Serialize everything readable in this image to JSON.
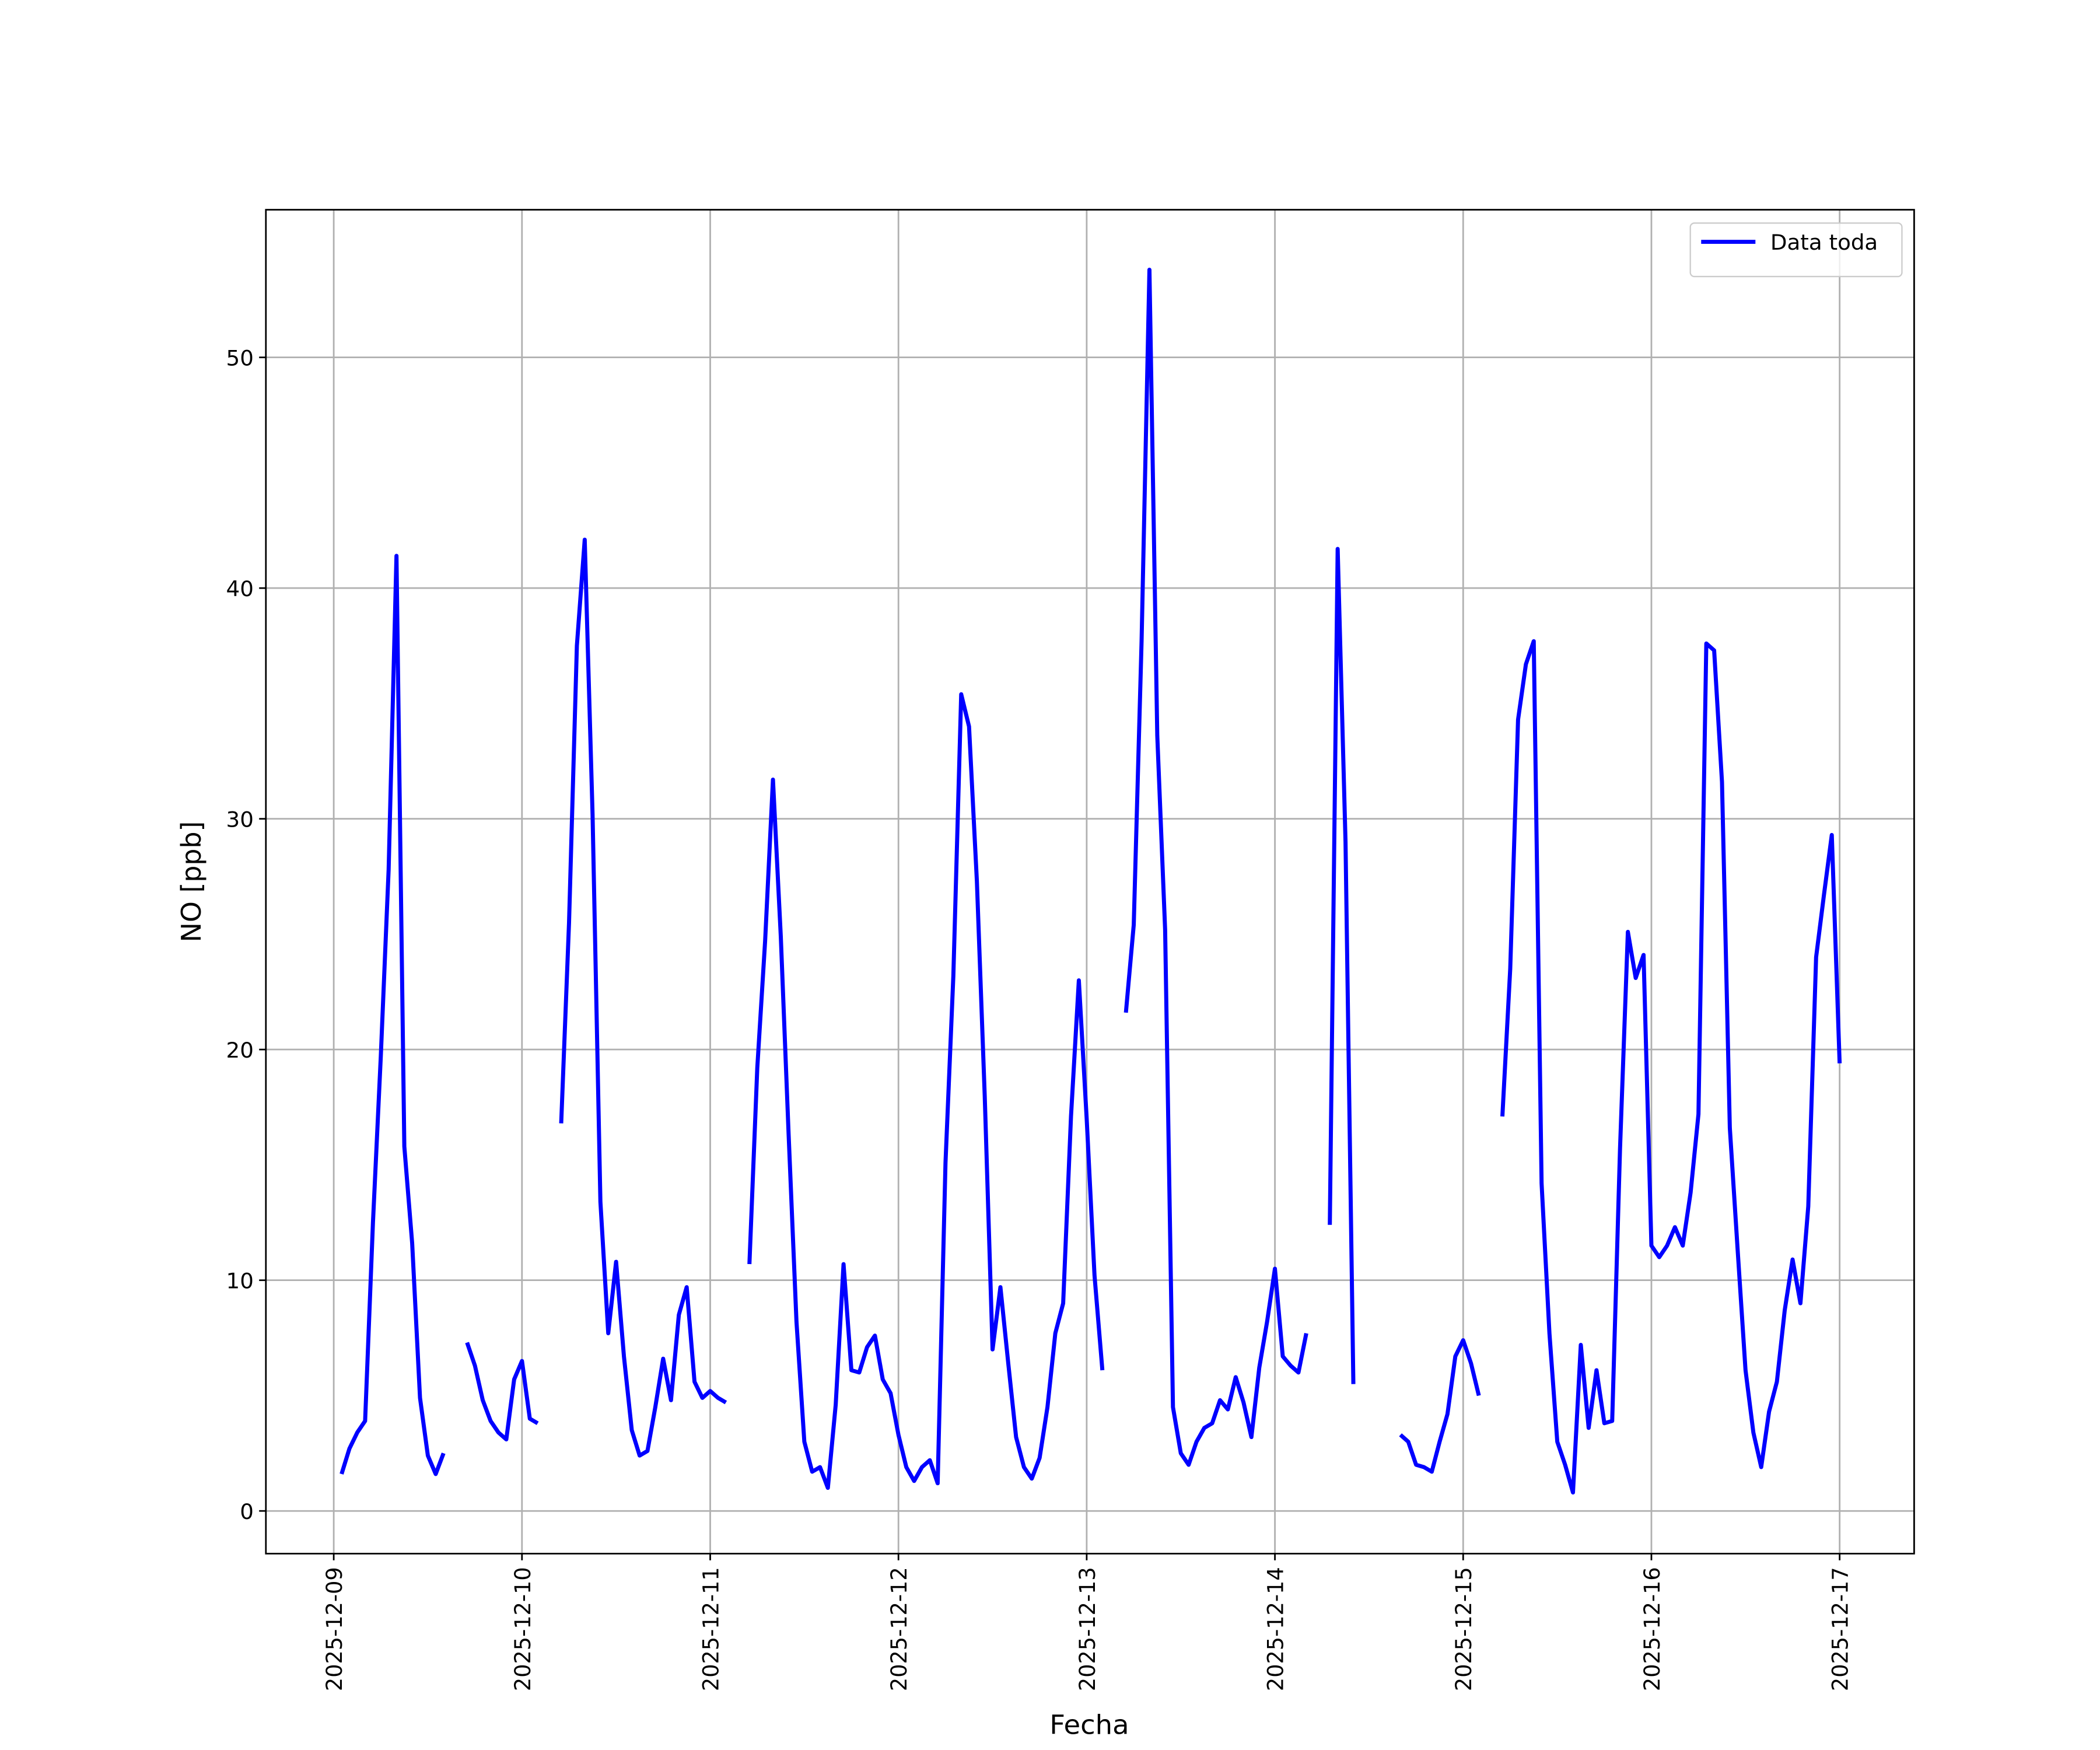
{
  "chart_data": {
    "type": "line",
    "xlabel": "Fecha",
    "ylabel": "NO [ppb]",
    "x": [
      "2025-12-09T01:00",
      "2025-12-09T02:00",
      "2025-12-09T03:00",
      "2025-12-09T04:00",
      "2025-12-09T05:00",
      "2025-12-09T06:00",
      "2025-12-09T07:00",
      "2025-12-09T08:00",
      "2025-12-09T09:00",
      "2025-12-09T10:00",
      "2025-12-09T11:00",
      "2025-12-09T12:00",
      "2025-12-09T13:00",
      "2025-12-09T14:00",
      "2025-12-09T15:00",
      "2025-12-09T16:00",
      "2025-12-09T17:00",
      "2025-12-09T18:00",
      "2025-12-09T19:00",
      "2025-12-09T20:00",
      "2025-12-09T21:00",
      "2025-12-09T22:00",
      "2025-12-09T23:00",
      "2025-12-10T00:00",
      "2025-12-10T01:00",
      "2025-12-10T02:00",
      "2025-12-10T03:00",
      "2025-12-10T04:00",
      "2025-12-10T05:00",
      "2025-12-10T06:00",
      "2025-12-10T07:00",
      "2025-12-10T08:00",
      "2025-12-10T09:00",
      "2025-12-10T10:00",
      "2025-12-10T11:00",
      "2025-12-10T12:00",
      "2025-12-10T13:00",
      "2025-12-10T14:00",
      "2025-12-10T15:00",
      "2025-12-10T16:00",
      "2025-12-10T17:00",
      "2025-12-10T18:00",
      "2025-12-10T19:00",
      "2025-12-10T20:00",
      "2025-12-10T21:00",
      "2025-12-10T22:00",
      "2025-12-10T23:00",
      "2025-12-11T00:00",
      "2025-12-11T01:00",
      "2025-12-11T02:00",
      "2025-12-11T03:00",
      "2025-12-11T04:00",
      "2025-12-11T05:00",
      "2025-12-11T06:00",
      "2025-12-11T07:00",
      "2025-12-11T08:00",
      "2025-12-11T09:00",
      "2025-12-11T10:00",
      "2025-12-11T11:00",
      "2025-12-11T12:00",
      "2025-12-11T13:00",
      "2025-12-11T14:00",
      "2025-12-11T15:00",
      "2025-12-11T16:00",
      "2025-12-11T17:00",
      "2025-12-11T18:00",
      "2025-12-11T19:00",
      "2025-12-11T20:00",
      "2025-12-11T21:00",
      "2025-12-11T22:00",
      "2025-12-11T23:00",
      "2025-12-12T00:00",
      "2025-12-12T01:00",
      "2025-12-12T02:00",
      "2025-12-12T03:00",
      "2025-12-12T04:00",
      "2025-12-12T05:00",
      "2025-12-12T06:00",
      "2025-12-12T07:00",
      "2025-12-12T08:00",
      "2025-12-12T09:00",
      "2025-12-12T10:00",
      "2025-12-12T11:00",
      "2025-12-12T12:00",
      "2025-12-12T13:00",
      "2025-12-12T14:00",
      "2025-12-12T15:00",
      "2025-12-12T16:00",
      "2025-12-12T17:00",
      "2025-12-12T18:00",
      "2025-12-12T19:00",
      "2025-12-12T20:00",
      "2025-12-12T21:00",
      "2025-12-12T22:00",
      "2025-12-12T23:00",
      "2025-12-13T00:00",
      "2025-12-13T01:00",
      "2025-12-13T02:00",
      "2025-12-13T03:00",
      "2025-12-13T04:00",
      "2025-12-13T05:00",
      "2025-12-13T06:00",
      "2025-12-13T07:00",
      "2025-12-13T08:00",
      "2025-12-13T09:00",
      "2025-12-13T10:00",
      "2025-12-13T11:00",
      "2025-12-13T12:00",
      "2025-12-13T13:00",
      "2025-12-13T14:00",
      "2025-12-13T15:00",
      "2025-12-13T16:00",
      "2025-12-13T17:00",
      "2025-12-13T18:00",
      "2025-12-13T19:00",
      "2025-12-13T20:00",
      "2025-12-13T21:00",
      "2025-12-13T22:00",
      "2025-12-13T23:00",
      "2025-12-14T00:00",
      "2025-12-14T01:00",
      "2025-12-14T02:00",
      "2025-12-14T03:00",
      "2025-12-14T04:00",
      "2025-12-14T05:00",
      "2025-12-14T06:00",
      "2025-12-14T07:00",
      "2025-12-14T08:00",
      "2025-12-14T09:00",
      "2025-12-14T10:00",
      "2025-12-14T11:00",
      "2025-12-14T12:00",
      "2025-12-14T13:00",
      "2025-12-14T14:00",
      "2025-12-14T15:00",
      "2025-12-14T16:00",
      "2025-12-14T17:00",
      "2025-12-14T18:00",
      "2025-12-14T19:00",
      "2025-12-14T20:00",
      "2025-12-14T21:00",
      "2025-12-14T22:00",
      "2025-12-14T23:00",
      "2025-12-15T00:00",
      "2025-12-15T01:00",
      "2025-12-15T02:00",
      "2025-12-15T03:00",
      "2025-12-15T04:00",
      "2025-12-15T05:00",
      "2025-12-15T06:00",
      "2025-12-15T07:00",
      "2025-12-15T08:00",
      "2025-12-15T09:00",
      "2025-12-15T10:00",
      "2025-12-15T11:00",
      "2025-12-15T12:00",
      "2025-12-15T13:00",
      "2025-12-15T14:00",
      "2025-12-15T15:00",
      "2025-12-15T16:00",
      "2025-12-15T17:00",
      "2025-12-15T18:00",
      "2025-12-15T19:00",
      "2025-12-15T20:00",
      "2025-12-15T21:00",
      "2025-12-15T22:00",
      "2025-12-15T23:00",
      "2025-12-16T00:00",
      "2025-12-16T01:00",
      "2025-12-16T02:00",
      "2025-12-16T03:00",
      "2025-12-16T04:00",
      "2025-12-16T05:00",
      "2025-12-16T06:00",
      "2025-12-16T07:00",
      "2025-12-16T08:00",
      "2025-12-16T09:00",
      "2025-12-16T10:00",
      "2025-12-16T11:00",
      "2025-12-16T12:00",
      "2025-12-16T13:00",
      "2025-12-16T14:00",
      "2025-12-16T15:00",
      "2025-12-16T16:00",
      "2025-12-16T17:00",
      "2025-12-16T18:00",
      "2025-12-16T19:00",
      "2025-12-16T20:00",
      "2025-12-16T21:00",
      "2025-12-16T22:00",
      "2025-12-16T23:00",
      "2025-12-17T00:00"
    ],
    "series": [
      {
        "name": "Data toda",
        "color": "#0000ff",
        "values": [
          1.6,
          2.7,
          3.4,
          3.9,
          12.5,
          19.7,
          27.8,
          41.4,
          15.8,
          11.6,
          4.9,
          2.4,
          1.6,
          2.5,
          null,
          null,
          7.3,
          6.3,
          4.8,
          3.9,
          3.4,
          3.1,
          5.7,
          6.5,
          4.0,
          3.8,
          null,
          null,
          16.8,
          25.5,
          37.5,
          42.1,
          30.2,
          13.4,
          7.7,
          10.8,
          6.7,
          3.5,
          2.4,
          2.6,
          4.5,
          6.6,
          4.8,
          8.5,
          9.7,
          5.6,
          4.9,
          5.2,
          4.9,
          4.7,
          null,
          null,
          10.7,
          19.2,
          24.7,
          31.7,
          24.9,
          16.3,
          8.2,
          3.0,
          1.7,
          1.9,
          1.0,
          4.6,
          10.7,
          6.1,
          6.0,
          7.1,
          7.6,
          5.7,
          5.1,
          3.3,
          1.9,
          1.3,
          1.9,
          2.2,
          1.2,
          15.1,
          23.2,
          35.4,
          34.0,
          27.3,
          18.0,
          7.0,
          9.7,
          6.4,
          3.2,
          1.9,
          1.4,
          2.3,
          4.5,
          7.7,
          9.0,
          17.1,
          23.0,
          17.0,
          10.2,
          6.1,
          null,
          null,
          21.6,
          25.4,
          37.7,
          53.8,
          33.6,
          25.2,
          4.5,
          2.5,
          2.0,
          3.0,
          3.6,
          3.8,
          4.8,
          4.4,
          5.8,
          4.7,
          3.2,
          6.2,
          8.2,
          10.5,
          6.7,
          6.3,
          6.0,
          7.7,
          null,
          null,
          12.4,
          41.7,
          29.0,
          5.5,
          null,
          null,
          null,
          null,
          null,
          3.3,
          3.0,
          2.0,
          1.9,
          1.7,
          3.0,
          4.2,
          6.7,
          7.4,
          6.4,
          5.0,
          null,
          null,
          17.1,
          23.5,
          34.3,
          36.7,
          37.7,
          14.2,
          7.7,
          3.0,
          2.0,
          0.8,
          7.2,
          3.6,
          6.1,
          3.8,
          3.9,
          15.7,
          25.1,
          23.1,
          24.1,
          11.5,
          11.0,
          11.5,
          12.3,
          11.5,
          13.8,
          17.2,
          37.6,
          37.3,
          31.6,
          16.6,
          11.3,
          6.1,
          3.4,
          1.9,
          4.3,
          5.6,
          8.7,
          10.9,
          9.0,
          13.2,
          24.0,
          26.7,
          29.3,
          19.4
        ]
      }
    ],
    "xlim": [
      "2025-12-08T15:21",
      "2025-12-17T09:30"
    ],
    "xticks": [
      "2025-12-09",
      "2025-12-10",
      "2025-12-11",
      "2025-12-12",
      "2025-12-13",
      "2025-12-14",
      "2025-12-15",
      "2025-12-16",
      "2025-12-17"
    ],
    "ylim": [
      -1.85,
      56.4
    ],
    "yticks": [
      0,
      10,
      20,
      30,
      40,
      50
    ],
    "grid": true,
    "legend": "upper right"
  }
}
